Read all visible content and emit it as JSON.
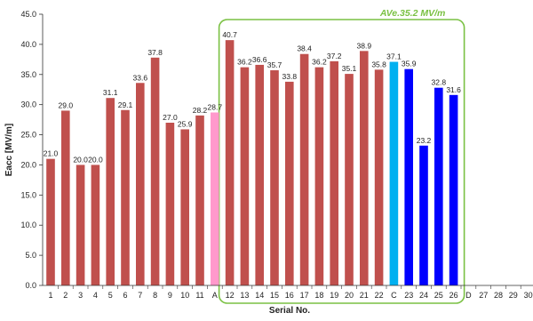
{
  "chart_data": {
    "type": "bar",
    "xlabel": "Serial No.",
    "ylabel": "Eacc [MV/m]",
    "ylim": [
      0,
      45
    ],
    "yticks": [
      "0.0",
      "5.0",
      "10.0",
      "15.0",
      "20.0",
      "25.0",
      "30.0",
      "35.0",
      "40.0",
      "45.0"
    ],
    "grid": false,
    "categories": [
      "1",
      "2",
      "3",
      "4",
      "5",
      "6",
      "7",
      "8",
      "9",
      "10",
      "11",
      "A",
      "12",
      "13",
      "14",
      "15",
      "16",
      "17",
      "18",
      "19",
      "20",
      "21",
      "22",
      "C",
      "23",
      "24",
      "25",
      "26",
      "D",
      "27",
      "28",
      "29",
      "30"
    ],
    "values": [
      21.0,
      29.0,
      20.0,
      20.0,
      31.1,
      29.1,
      33.6,
      37.8,
      27.0,
      25.9,
      28.2,
      28.7,
      40.7,
      36.2,
      36.6,
      35.7,
      33.8,
      38.4,
      36.2,
      37.2,
      35.1,
      38.9,
      35.8,
      37.1,
      35.9,
      23.2,
      32.8,
      31.6,
      null,
      null,
      null,
      null,
      null
    ],
    "value_labels": [
      "21.0",
      "29.0",
      "20.0",
      "20.0",
      "31.1",
      "29.1",
      "33.6",
      "37.8",
      "27.0",
      "25.9",
      "28.2",
      "28.7",
      "40.7",
      "36.2",
      "36.6",
      "35.7",
      "33.8",
      "38.4",
      "36.2",
      "37.2",
      "35.1",
      "38.9",
      "35.8",
      "37.1",
      "35.9",
      "23.2",
      "32.8",
      "31.6",
      "",
      "",
      "",
      "",
      ""
    ],
    "bar_colors": [
      "#c0504d",
      "#c0504d",
      "#c0504d",
      "#c0504d",
      "#c0504d",
      "#c0504d",
      "#c0504d",
      "#c0504d",
      "#c0504d",
      "#c0504d",
      "#c0504d",
      "#ff99cc",
      "#c0504d",
      "#c0504d",
      "#c0504d",
      "#c0504d",
      "#c0504d",
      "#c0504d",
      "#c0504d",
      "#c0504d",
      "#c0504d",
      "#c0504d",
      "#c0504d",
      "#00b0f0",
      "#0000ff",
      "#0000ff",
      "#0000ff",
      "#0000ff",
      "",
      "",
      "",
      "",
      ""
    ],
    "annotation": {
      "text": "AVe.35.2 MV/m",
      "color": "#7ac143",
      "from_category": "12",
      "to_category": "26"
    }
  }
}
